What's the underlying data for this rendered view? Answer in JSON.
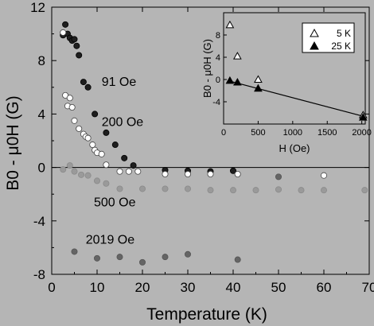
{
  "colors": {
    "background": "#b5b5b5",
    "series_91": "#1e1e1e",
    "series_200": "#ffffff",
    "series_200_alt": "#5a5a5a",
    "series_500": "#9a9a9a",
    "series_2019": "#656565",
    "axis": "#000000"
  },
  "chart_data": [
    {
      "type": "scatter",
      "xlabel": "Temperature (K)",
      "ylabel": "B0 - μ0H (G)",
      "xlim": [
        0,
        70
      ],
      "ylim": [
        -8,
        12
      ],
      "xticks": [
        0,
        10,
        20,
        30,
        40,
        50,
        60,
        70
      ],
      "yticks": [
        -8,
        -4,
        0,
        4,
        8,
        12
      ],
      "zero_line": true,
      "series": [
        {
          "name": "91 Oe",
          "label_anchor": {
            "x": 11,
            "y": 6.1
          },
          "color": "#1e1e1e",
          "points": [
            {
              "x": 2.5,
              "y": 9.9
            },
            {
              "x": 3.0,
              "y": 10.7
            },
            {
              "x": 3.5,
              "y": 10.0
            },
            {
              "x": 4.0,
              "y": 9.7
            },
            {
              "x": 4.5,
              "y": 9.5
            },
            {
              "x": 5.0,
              "y": 9.6
            },
            {
              "x": 5.5,
              "y": 9.1
            },
            {
              "x": 6.0,
              "y": 8.4
            },
            {
              "x": 7.0,
              "y": 6.4
            },
            {
              "x": 8.0,
              "y": 6.0
            },
            {
              "x": 9.5,
              "y": 4.0
            },
            {
              "x": 12.0,
              "y": 2.6
            },
            {
              "x": 14.0,
              "y": 1.7
            },
            {
              "x": 16.0,
              "y": 0.7
            },
            {
              "x": 18.0,
              "y": 0.15
            },
            {
              "x": 25.0,
              "y": -0.2
            },
            {
              "x": 30.0,
              "y": -0.25
            },
            {
              "x": 35.0,
              "y": -0.3
            },
            {
              "x": 40.0,
              "y": -0.25
            }
          ]
        },
        {
          "name": "200 Oe",
          "label_anchor": {
            "x": 11,
            "y": 3.1
          },
          "color": "#ffffff",
          "points": [
            {
              "x": 2.5,
              "y": 10.1
            },
            {
              "x": 3.0,
              "y": 5.4
            },
            {
              "x": 3.5,
              "y": 4.6
            },
            {
              "x": 4.0,
              "y": 5.2
            },
            {
              "x": 4.5,
              "y": 4.5
            },
            {
              "x": 5.0,
              "y": 3.5
            },
            {
              "x": 6.0,
              "y": 2.9
            },
            {
              "x": 7.0,
              "y": 2.5
            },
            {
              "x": 7.5,
              "y": 2.3
            },
            {
              "x": 8.0,
              "y": 2.2
            },
            {
              "x": 9.0,
              "y": 1.7
            },
            {
              "x": 9.5,
              "y": 1.3
            },
            {
              "x": 10.0,
              "y": 1.1
            },
            {
              "x": 11.0,
              "y": 1.0
            },
            {
              "x": 12.0,
              "y": 0.2
            },
            {
              "x": 15.0,
              "y": -0.3
            },
            {
              "x": 17.0,
              "y": -0.3
            },
            {
              "x": 19.0,
              "y": -0.3
            },
            {
              "x": 25.0,
              "y": -0.5
            },
            {
              "x": 30.0,
              "y": -0.5
            },
            {
              "x": 35.0,
              "y": -0.5
            },
            {
              "x": 41.0,
              "y": -0.5
            },
            {
              "x": 60.0,
              "y": -0.6
            }
          ]
        },
        {
          "name": "500 Oe",
          "label_anchor": {
            "x": 9.3,
            "y": -2.9
          },
          "color": "#9a9a9a",
          "points": [
            {
              "x": 2.5,
              "y": -0.15
            },
            {
              "x": 4.0,
              "y": 0.15
            },
            {
              "x": 5.0,
              "y": -0.3
            },
            {
              "x": 6.5,
              "y": -0.55
            },
            {
              "x": 8.0,
              "y": -0.6
            },
            {
              "x": 10.0,
              "y": -1.0
            },
            {
              "x": 12.0,
              "y": -1.2
            },
            {
              "x": 15.0,
              "y": -1.6
            },
            {
              "x": 20.0,
              "y": -1.6
            },
            {
              "x": 25.0,
              "y": -1.6
            },
            {
              "x": 30.0,
              "y": -1.6
            },
            {
              "x": 35.0,
              "y": -1.7
            },
            {
              "x": 40.0,
              "y": -1.7
            },
            {
              "x": 45.0,
              "y": -1.7
            },
            {
              "x": 50.0,
              "y": -1.65
            },
            {
              "x": 55.0,
              "y": -1.7
            },
            {
              "x": 60.0,
              "y": -1.7
            },
            {
              "x": 69.0,
              "y": -1.7
            }
          ]
        },
        {
          "name": "2019 Oe",
          "label_anchor": {
            "x": 7.5,
            "y": -5.7
          },
          "color": "#656565",
          "points": [
            {
              "x": 5.0,
              "y": -6.3
            },
            {
              "x": 10.0,
              "y": -6.8
            },
            {
              "x": 15.0,
              "y": -6.7
            },
            {
              "x": 20.0,
              "y": -7.1
            },
            {
              "x": 25.0,
              "y": -6.7
            },
            {
              "x": 30.0,
              "y": -6.5
            },
            {
              "x": 41.0,
              "y": -6.9
            },
            {
              "x": 50.0,
              "y": -0.7
            }
          ]
        }
      ]
    },
    {
      "type": "scatter",
      "inset": true,
      "xlabel": "H (Oe)",
      "ylabel": "B0 - μ0H (G)",
      "xlim": [
        0,
        2050
      ],
      "ylim": [
        -8,
        12
      ],
      "xticks": [
        0,
        500,
        1000,
        1500,
        2000
      ],
      "yticks": [
        -4,
        0,
        4,
        8
      ],
      "legend": "top-right",
      "series": [
        {
          "name": "5 K",
          "marker": "open-triangle",
          "points": [
            {
              "x": 91,
              "y": 9.8
            },
            {
              "x": 200,
              "y": 4.2
            },
            {
              "x": 500,
              "y": 0.0
            },
            {
              "x": 2019,
              "y": -6.4
            }
          ]
        },
        {
          "name": "25 K",
          "marker": "filled-triangle",
          "points": [
            {
              "x": 91,
              "y": -0.2
            },
            {
              "x": 200,
              "y": -0.5
            },
            {
              "x": 500,
              "y": -1.6
            },
            {
              "x": 2019,
              "y": -6.8
            }
          ]
        }
      ],
      "fit_line": {
        "x": [
          91,
          2019
        ],
        "y": [
          -0.3,
          -6.6
        ]
      }
    }
  ]
}
